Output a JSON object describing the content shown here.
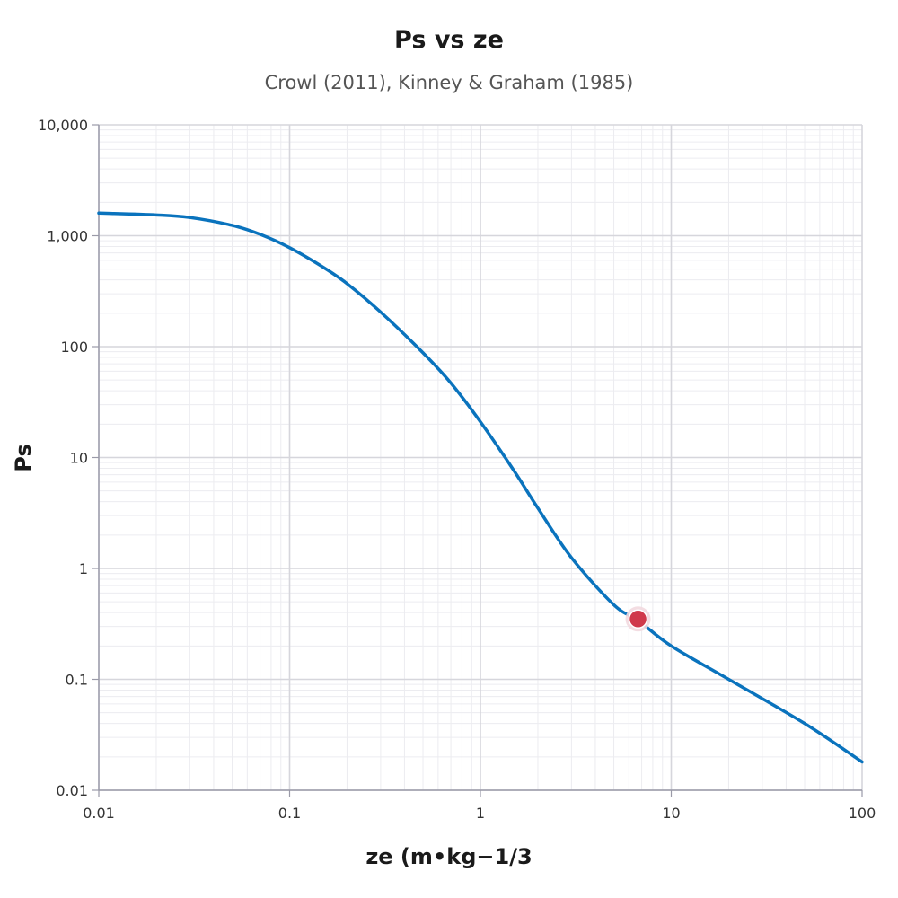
{
  "chart_data": {
    "type": "line",
    "title": "Ps vs ze",
    "subtitle": "Crowl (2011), Kinney & Graham (1985)",
    "xlabel": "ze (m•kg−1/3",
    "ylabel": "Ps",
    "x_scale": "log",
    "y_scale": "log",
    "xlim": [
      0.01,
      100
    ],
    "ylim": [
      0.01,
      10000
    ],
    "x_ticks": [
      {
        "value": 0.01,
        "label": "0.01"
      },
      {
        "value": 0.1,
        "label": "0.1"
      },
      {
        "value": 1,
        "label": "1"
      },
      {
        "value": 10,
        "label": "10"
      },
      {
        "value": 100,
        "label": "100"
      }
    ],
    "y_ticks": [
      {
        "value": 0.01,
        "label": "0.01"
      },
      {
        "value": 0.1,
        "label": "0.1"
      },
      {
        "value": 1,
        "label": "1"
      },
      {
        "value": 10,
        "label": "10"
      },
      {
        "value": 100,
        "label": "100"
      },
      {
        "value": 1000,
        "label": "1,000"
      },
      {
        "value": 10000,
        "label": "10,000"
      }
    ],
    "grid": true,
    "series": [
      {
        "color": "#0a73bd",
        "x": [
          0.01,
          0.02,
          0.03,
          0.05,
          0.07,
          0.1,
          0.15,
          0.2,
          0.3,
          0.5,
          0.7,
          1,
          1.5,
          2,
          3,
          5,
          6.7,
          10,
          20,
          50,
          100
        ],
        "y": [
          1600,
          1540,
          1460,
          1240,
          1030,
          780,
          520,
          370,
          205,
          88,
          47,
          21,
          7.6,
          3.5,
          1.25,
          0.47,
          0.34,
          0.2,
          0.1,
          0.04,
          0.018
        ]
      }
    ],
    "highlight_point": {
      "x": 6.7,
      "y": 0.35,
      "color": "#d0394b"
    }
  }
}
